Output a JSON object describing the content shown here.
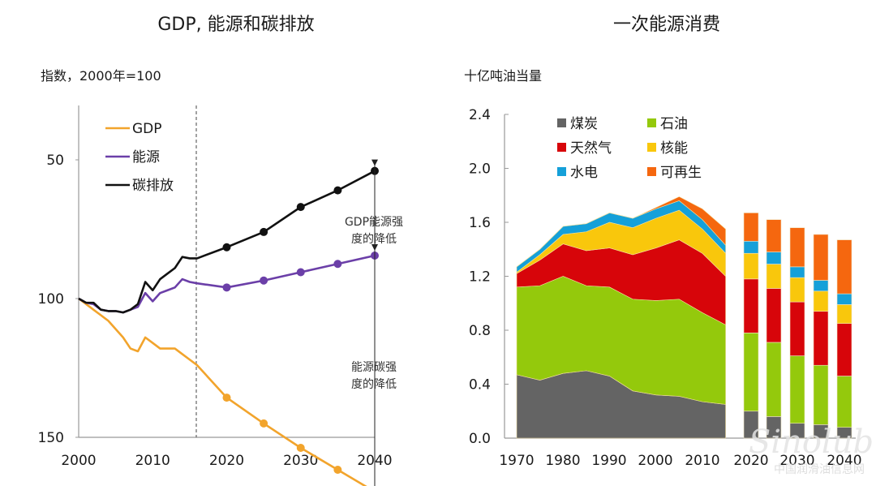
{
  "chart_data": [
    {
      "type": "line",
      "title": "GDP, 能源和碳排放",
      "ylabel": "指数，2000年=100",
      "xlabel": "",
      "xlim": [
        2000,
        2040
      ],
      "ylim": [
        50,
        170
      ],
      "xticks": [
        2000,
        2010,
        2020,
        2030,
        2040
      ],
      "yticks": [
        50,
        100,
        150
      ],
      "projection_start": 2016,
      "series": [
        {
          "name": "GDP",
          "color": "#f2a42c",
          "x": [
            2000,
            2001,
            2002,
            2003,
            2004,
            2005,
            2006,
            2007,
            2008,
            2009,
            2010,
            2011,
            2012,
            2013,
            2014,
            2015,
            2016,
            2020,
            2025,
            2030,
            2035,
            2040
          ],
          "y": [
            100,
            102,
            104,
            106,
            108,
            111,
            114,
            118,
            119,
            114,
            116,
            118,
            118,
            118,
            120,
            122,
            124,
            135.7,
            145,
            153.8,
            161.7,
            169.6
          ],
          "markers_from": 2020
        },
        {
          "name": "能源",
          "color": "#6b3fa8",
          "x": [
            2000,
            2001,
            2002,
            2003,
            2004,
            2005,
            2006,
            2007,
            2008,
            2009,
            2010,
            2011,
            2012,
            2013,
            2014,
            2015,
            2016,
            2020,
            2025,
            2030,
            2035,
            2040
          ],
          "y": [
            100,
            101.5,
            102,
            104,
            104.5,
            104.5,
            105,
            104,
            103,
            98,
            101,
            98,
            97,
            96,
            93,
            94,
            94.5,
            96,
            93.5,
            90.5,
            87.5,
            84.5
          ],
          "markers_from": 2020
        },
        {
          "name": "碳排放",
          "color": "#111111",
          "x": [
            2000,
            2001,
            2002,
            2003,
            2004,
            2005,
            2006,
            2007,
            2008,
            2009,
            2010,
            2011,
            2012,
            2013,
            2014,
            2015,
            2016,
            2020,
            2025,
            2030,
            2035,
            2040
          ],
          "y": [
            100,
            101.5,
            101.5,
            104,
            104.5,
            104.5,
            105,
            104,
            102,
            94,
            97,
            93,
            91,
            89,
            85,
            85.5,
            85.5,
            81.5,
            76,
            67,
            61,
            54
          ],
          "markers_from": 2020
        }
      ],
      "annotations": [
        {
          "text_lines": [
            "GDP能源强",
            "度的降低"
          ],
          "x": 2040,
          "from": 169.6,
          "to": 84.5
        },
        {
          "text_lines": [
            "能源碳强",
            "度的降低"
          ],
          "x": 2040,
          "from": 84.5,
          "to": 54
        }
      ],
      "legend": "top-left"
    },
    {
      "type": "area",
      "title": "一次能源消费",
      "ylabel": "十亿吨油当量",
      "xlabel": "",
      "ylim": [
        0,
        2.4
      ],
      "yticks": [
        "0.0",
        "0.4",
        "0.8",
        "1.2",
        "1.6",
        "2.0",
        "2.4"
      ],
      "xticks": [
        1970,
        1980,
        1990,
        2000,
        2010,
        2020,
        2030,
        2040
      ],
      "legend": "top",
      "series_order": [
        "煤炭",
        "石油",
        "天然气",
        "核能",
        "水电",
        "可再生"
      ],
      "colors": {
        "煤炭": "#646464",
        "石油": "#94c90c",
        "天然气": "#d7050a",
        "核能": "#f9c70c",
        "水电": "#15a0d9",
        "可再生": "#f5670f"
      },
      "area": {
        "x": [
          1970,
          1975,
          1980,
          1985,
          1990,
          1995,
          2000,
          2005,
          2010,
          2015
        ],
        "series": [
          {
            "name": "煤炭",
            "values": [
              0.47,
              0.43,
              0.48,
              0.5,
              0.46,
              0.35,
              0.32,
              0.31,
              0.27,
              0.25
            ]
          },
          {
            "name": "石油",
            "values": [
              0.65,
              0.7,
              0.72,
              0.63,
              0.66,
              0.68,
              0.7,
              0.72,
              0.66,
              0.59
            ]
          },
          {
            "name": "天然气",
            "values": [
              0.1,
              0.19,
              0.24,
              0.26,
              0.29,
              0.33,
              0.39,
              0.44,
              0.44,
              0.36
            ]
          },
          {
            "name": "核能",
            "values": [
              0.01,
              0.04,
              0.07,
              0.14,
              0.19,
              0.2,
              0.22,
              0.22,
              0.18,
              0.17
            ]
          },
          {
            "name": "水电",
            "values": [
              0.04,
              0.04,
              0.06,
              0.06,
              0.07,
              0.07,
              0.07,
              0.07,
              0.07,
              0.06
            ]
          },
          {
            "name": "可再生",
            "values": [
              0.0,
              0.0,
              0.0,
              0.0,
              0.0,
              0.0,
              0.01,
              0.03,
              0.08,
              0.12
            ]
          }
        ]
      },
      "bars": {
        "x": [
          2020,
          2025,
          2030,
          2035,
          2040
        ],
        "series": [
          {
            "name": "煤炭",
            "values": [
              0.2,
              0.16,
              0.11,
              0.1,
              0.08
            ]
          },
          {
            "name": "石油",
            "values": [
              0.58,
              0.55,
              0.5,
              0.44,
              0.38
            ]
          },
          {
            "name": "天然气",
            "values": [
              0.4,
              0.4,
              0.4,
              0.4,
              0.39
            ]
          },
          {
            "name": "核能",
            "values": [
              0.19,
              0.18,
              0.18,
              0.15,
              0.14
            ]
          },
          {
            "name": "水电",
            "values": [
              0.09,
              0.09,
              0.08,
              0.08,
              0.08
            ]
          },
          {
            "name": "可再生",
            "values": [
              0.21,
              0.24,
              0.29,
              0.34,
              0.4
            ]
          }
        ]
      }
    }
  ],
  "watermark": {
    "brand": "Sinolub",
    "sub": ".com",
    "cn": "中国润滑油信息网"
  }
}
